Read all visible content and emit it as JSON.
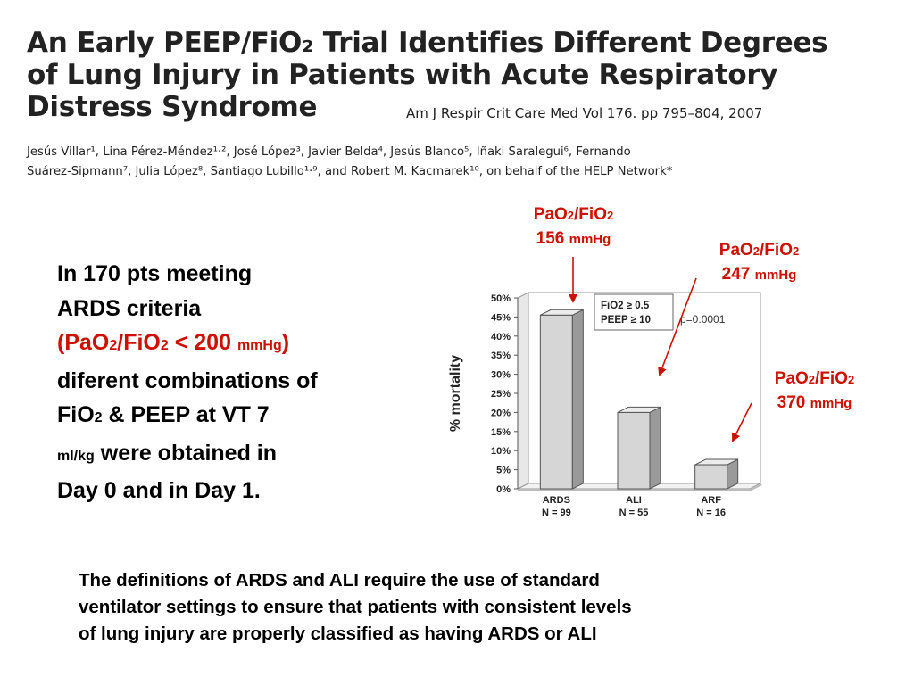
{
  "header": {
    "title_line1": "An Early PEEP/FiO₂ Trial Identifies Different Degrees",
    "title_line2": "of Lung Injury in Patients with Acute Respiratory",
    "title_line3": "Distress Syndrome",
    "journal": "Am J Respir Crit Care Med   Vol 176. pp 795–804, 2007",
    "authors_line1": "Jesús Villar¹,  Lina Pérez-Méndez¹·²,  José  López³,  Javier Belda⁴,  Jesús  Blanco⁵,  Iñaki Saralegui⁶,  Fernando",
    "authors_line2": "Suárez-Sipmann⁷,  Julia López⁸,  Santiago  Lubillo¹·⁹,  and  Robert  M.  Kacmarek¹⁰,  on behalf of the HELP Network*"
  },
  "intro": {
    "l1": "In 170 pts meeting",
    "l2": "ARDS criteria",
    "l3a": "(PaO",
    "l3b": "2",
    "l3c": "/FiO",
    "l3d": "2",
    "l3e": " < 200 ",
    "l3f": "mmHg",
    "l3g": ")",
    "l4": "diferent combinations of",
    "l5a": "FiO",
    "l5b": "2",
    "l5c": " & PEEP at VT 7",
    "l6a": "ml/kg",
    "l6b": " were obtained in",
    "l7": "Day 0 and in Day 1."
  },
  "annotations": [
    {
      "a": "PaO",
      "b": "2",
      "c": "/FiO",
      "d": "2",
      "value": "156",
      "unit": "mmHg"
    },
    {
      "a": "PaO",
      "b": "2",
      "c": "/FiO",
      "d": "2",
      "value": "247",
      "unit": "mmHg"
    },
    {
      "a": "PaO",
      "b": "2",
      "c": "/FiO",
      "d": "2",
      "value": "370",
      "unit": "mmHg"
    }
  ],
  "colors": {
    "annotation": "#cc1100",
    "bar_front": "#d6d6d6",
    "bar_side": "#9a9a9a",
    "bar_top": "#ececec"
  },
  "chart_data": {
    "type": "bar",
    "ylabel": "% mortality",
    "ylim": [
      0,
      50
    ],
    "yticks": [
      "0%",
      "5%",
      "10%",
      "15%",
      "20%",
      "25%",
      "30%",
      "35%",
      "40%",
      "45%",
      "50%"
    ],
    "categories": [
      "ARDS",
      "ALI",
      "ARF"
    ],
    "n_labels": [
      "N = 99",
      "N = 55",
      "N = 16"
    ],
    "values": [
      45.5,
      20.0,
      6.3
    ],
    "legend_line1": "FiO2 ≥ 0.5",
    "legend_line2": "PEEP ≥ 10",
    "pvalue": "p=0.0001"
  },
  "footer": {
    "line1": "The definitions of ARDS and ALI require the use of standard",
    "line2": "ventilator settings to ensure that patients with consistent levels",
    "line3": "of lung injury are properly classified as having ARDS or ALI"
  }
}
